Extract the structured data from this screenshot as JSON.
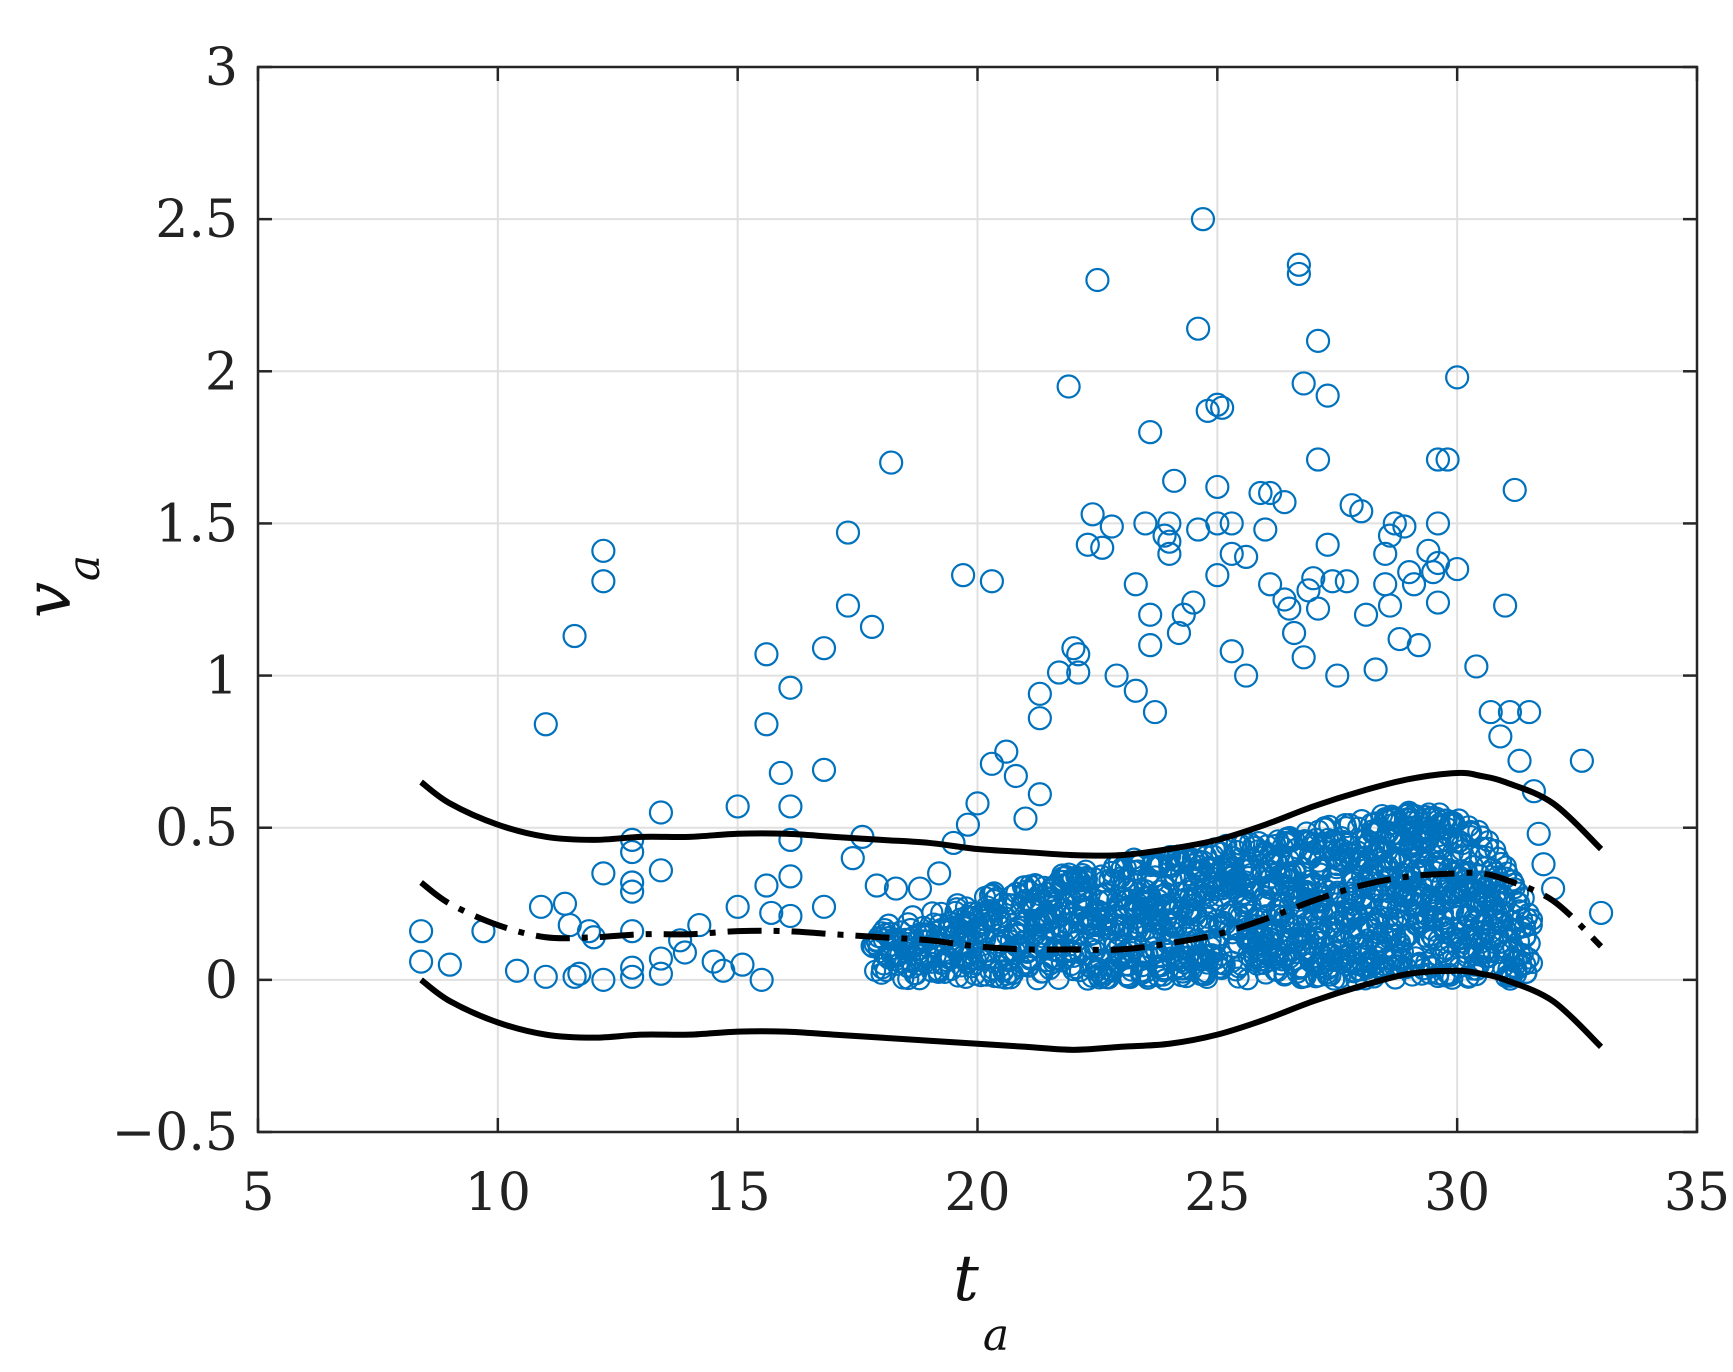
{
  "chart_data": {
    "type": "scatter",
    "title": "",
    "xlabel": "t",
    "xlabel_sub": "a",
    "ylabel": "v",
    "ylabel_sub": "a",
    "xlim": [
      5,
      35
    ],
    "ylim": [
      -0.5,
      3
    ],
    "xticks": [
      5,
      10,
      15,
      20,
      25,
      30,
      35
    ],
    "yticks": [
      -0.5,
      0,
      0.5,
      1,
      1.5,
      2,
      2.5,
      3
    ],
    "xtick_labels": [
      "5",
      "10",
      "15",
      "20",
      "25",
      "30",
      "35"
    ],
    "ytick_labels": [
      "−0.5",
      "0",
      "0.5",
      "1",
      "1.5",
      "2",
      "2.5",
      "3"
    ],
    "grid": true,
    "colors": {
      "points": "#0072BD",
      "lines": "#000000",
      "grid": "#e0e0e0",
      "axes": "#262626"
    },
    "series": [
      {
        "name": "observations",
        "kind": "scatter",
        "marker": "open-circle",
        "points": [
          [
            8.4,
            0.16
          ],
          [
            8.4,
            0.06
          ],
          [
            9.0,
            0.05
          ],
          [
            9.7,
            0.16
          ],
          [
            10.4,
            0.03
          ],
          [
            10.9,
            0.24
          ],
          [
            11.0,
            0.84
          ],
          [
            11.0,
            0.01
          ],
          [
            11.4,
            0.25
          ],
          [
            11.5,
            0.18
          ],
          [
            11.6,
            0.01
          ],
          [
            11.6,
            1.13
          ],
          [
            11.7,
            0.02
          ],
          [
            11.9,
            0.16
          ],
          [
            12.0,
            0.14
          ],
          [
            12.2,
            1.41
          ],
          [
            12.2,
            1.31
          ],
          [
            12.2,
            0.35
          ],
          [
            12.2,
            0.0
          ],
          [
            12.8,
            0.46
          ],
          [
            12.8,
            0.42
          ],
          [
            12.8,
            0.32
          ],
          [
            12.8,
            0.29
          ],
          [
            12.8,
            0.16
          ],
          [
            12.8,
            0.04
          ],
          [
            12.8,
            0.01
          ],
          [
            13.4,
            0.55
          ],
          [
            13.4,
            0.36
          ],
          [
            13.4,
            0.07
          ],
          [
            13.4,
            0.02
          ],
          [
            13.8,
            0.13
          ],
          [
            13.9,
            0.09
          ],
          [
            14.2,
            0.18
          ],
          [
            14.5,
            0.06
          ],
          [
            14.7,
            0.03
          ],
          [
            15.0,
            0.57
          ],
          [
            15.0,
            0.24
          ],
          [
            15.1,
            0.05
          ],
          [
            15.5,
            0.0
          ],
          [
            15.6,
            1.07
          ],
          [
            15.6,
            0.84
          ],
          [
            15.6,
            0.31
          ],
          [
            15.7,
            0.22
          ],
          [
            15.9,
            0.68
          ],
          [
            16.1,
            0.96
          ],
          [
            16.1,
            0.57
          ],
          [
            16.1,
            0.46
          ],
          [
            16.1,
            0.34
          ],
          [
            16.1,
            0.21
          ],
          [
            16.8,
            1.09
          ],
          [
            16.8,
            0.69
          ],
          [
            16.8,
            0.24
          ],
          [
            17.3,
            1.47
          ],
          [
            17.3,
            1.23
          ],
          [
            17.4,
            0.4
          ],
          [
            17.6,
            0.47
          ],
          [
            17.8,
            1.16
          ],
          [
            17.9,
            0.31
          ],
          [
            18.2,
            1.7
          ],
          [
            18.3,
            0.3
          ],
          [
            18.8,
            0.3
          ],
          [
            19.2,
            0.35
          ],
          [
            19.5,
            0.45
          ],
          [
            19.7,
            1.33
          ],
          [
            19.8,
            0.51
          ],
          [
            20.0,
            0.58
          ],
          [
            20.3,
            1.31
          ],
          [
            20.3,
            0.71
          ],
          [
            20.6,
            0.75
          ],
          [
            20.8,
            0.67
          ],
          [
            21.0,
            0.53
          ],
          [
            21.3,
            0.94
          ],
          [
            21.3,
            0.86
          ],
          [
            21.3,
            0.61
          ],
          [
            21.7,
            1.01
          ],
          [
            21.9,
            1.95
          ],
          [
            22.0,
            1.09
          ],
          [
            22.1,
            1.07
          ],
          [
            22.1,
            1.01
          ],
          [
            22.3,
            1.43
          ],
          [
            22.4,
            1.53
          ],
          [
            22.5,
            2.3
          ],
          [
            22.6,
            1.42
          ],
          [
            22.8,
            1.49
          ],
          [
            22.9,
            1.0
          ],
          [
            23.3,
            1.3
          ],
          [
            23.3,
            0.95
          ],
          [
            23.5,
            1.5
          ],
          [
            23.6,
            1.8
          ],
          [
            23.6,
            1.2
          ],
          [
            23.6,
            1.1
          ],
          [
            23.7,
            0.88
          ],
          [
            23.9,
            1.46
          ],
          [
            24.0,
            1.5
          ],
          [
            24.0,
            1.44
          ],
          [
            24.0,
            1.4
          ],
          [
            24.1,
            1.64
          ],
          [
            24.2,
            1.14
          ],
          [
            24.3,
            1.2
          ],
          [
            24.5,
            1.24
          ],
          [
            24.6,
            2.14
          ],
          [
            24.6,
            1.48
          ],
          [
            24.7,
            2.5
          ],
          [
            24.8,
            1.87
          ],
          [
            25.0,
            1.89
          ],
          [
            25.0,
            1.62
          ],
          [
            25.0,
            1.5
          ],
          [
            25.0,
            1.33
          ],
          [
            25.1,
            1.88
          ],
          [
            25.3,
            1.5
          ],
          [
            25.3,
            1.4
          ],
          [
            25.3,
            1.08
          ],
          [
            25.6,
            1.39
          ],
          [
            25.6,
            1.0
          ],
          [
            25.9,
            1.6
          ],
          [
            26.0,
            1.48
          ],
          [
            26.1,
            1.6
          ],
          [
            26.1,
            1.3
          ],
          [
            26.4,
            1.57
          ],
          [
            26.4,
            1.25
          ],
          [
            26.5,
            1.22
          ],
          [
            26.6,
            1.14
          ],
          [
            26.7,
            2.35
          ],
          [
            26.7,
            2.32
          ],
          [
            26.8,
            1.96
          ],
          [
            26.8,
            1.06
          ],
          [
            26.9,
            1.28
          ],
          [
            27.0,
            1.32
          ],
          [
            27.1,
            2.1
          ],
          [
            27.1,
            1.71
          ],
          [
            27.1,
            1.22
          ],
          [
            27.3,
            1.92
          ],
          [
            27.3,
            1.43
          ],
          [
            27.4,
            1.31
          ],
          [
            27.5,
            1.0
          ],
          [
            27.7,
            1.31
          ],
          [
            27.8,
            1.56
          ],
          [
            28.0,
            1.54
          ],
          [
            28.1,
            1.2
          ],
          [
            28.3,
            1.02
          ],
          [
            28.5,
            1.4
          ],
          [
            28.5,
            1.3
          ],
          [
            28.6,
            1.46
          ],
          [
            28.6,
            1.23
          ],
          [
            28.7,
            1.5
          ],
          [
            28.8,
            1.12
          ],
          [
            28.9,
            1.49
          ],
          [
            29.0,
            1.34
          ],
          [
            29.1,
            1.3
          ],
          [
            29.2,
            1.1
          ],
          [
            29.4,
            1.41
          ],
          [
            29.5,
            1.34
          ],
          [
            29.6,
            1.71
          ],
          [
            29.6,
            1.5
          ],
          [
            29.6,
            1.37
          ],
          [
            29.6,
            1.24
          ],
          [
            29.8,
            1.71
          ],
          [
            30.0,
            1.35
          ],
          [
            30.0,
            1.98
          ],
          [
            30.4,
            1.03
          ],
          [
            30.7,
            0.88
          ],
          [
            30.9,
            0.8
          ],
          [
            31.0,
            1.23
          ],
          [
            31.1,
            0.88
          ],
          [
            31.2,
            1.61
          ],
          [
            31.3,
            0.72
          ],
          [
            31.5,
            0.88
          ],
          [
            31.6,
            0.62
          ],
          [
            31.7,
            0.48
          ],
          [
            31.8,
            0.38
          ],
          [
            32.0,
            0.3
          ],
          [
            32.6,
            0.72
          ],
          [
            33.0,
            0.22
          ]
        ]
      },
      {
        "name": "dense-cloud",
        "kind": "scatter-band",
        "x_start": 17.8,
        "x_end": 31.6,
        "x_step": 0.05,
        "y_low": 0,
        "upper_envelope": [
          [
            17.8,
            0.17
          ],
          [
            19.5,
            0.25
          ],
          [
            21.0,
            0.32
          ],
          [
            22.5,
            0.38
          ],
          [
            24.0,
            0.42
          ],
          [
            25.5,
            0.45
          ],
          [
            27.0,
            0.5
          ],
          [
            28.5,
            0.55
          ],
          [
            29.5,
            0.56
          ],
          [
            30.5,
            0.5
          ],
          [
            31.2,
            0.35
          ],
          [
            31.6,
            0.2
          ]
        ]
      },
      {
        "name": "upper-bound",
        "kind": "line",
        "style": "solid",
        "x": [
          8.4,
          9.0,
          10.0,
          11.0,
          12.0,
          13.0,
          14.0,
          15.0,
          16.0,
          17.0,
          18.0,
          19.0,
          20.0,
          21.0,
          22.0,
          23.0,
          24.0,
          25.0,
          26.0,
          27.0,
          28.0,
          29.0,
          30.0,
          30.5,
          31.0,
          32.0,
          33.0
        ],
        "y": [
          0.65,
          0.58,
          0.51,
          0.47,
          0.46,
          0.47,
          0.47,
          0.48,
          0.48,
          0.47,
          0.46,
          0.45,
          0.43,
          0.42,
          0.41,
          0.41,
          0.43,
          0.46,
          0.51,
          0.57,
          0.62,
          0.66,
          0.68,
          0.67,
          0.65,
          0.58,
          0.43
        ]
      },
      {
        "name": "mean",
        "kind": "line",
        "style": "dashdot",
        "x": [
          8.4,
          9.0,
          10.0,
          11.0,
          12.0,
          13.0,
          14.0,
          15.0,
          16.0,
          17.0,
          18.0,
          19.0,
          20.0,
          21.0,
          22.0,
          23.0,
          24.0,
          25.0,
          26.0,
          27.0,
          28.0,
          29.0,
          30.0,
          30.5,
          31.0,
          32.0,
          33.0
        ],
        "y": [
          0.32,
          0.25,
          0.18,
          0.14,
          0.14,
          0.15,
          0.15,
          0.16,
          0.16,
          0.15,
          0.14,
          0.13,
          0.11,
          0.1,
          0.1,
          0.1,
          0.12,
          0.15,
          0.2,
          0.26,
          0.31,
          0.34,
          0.35,
          0.35,
          0.33,
          0.26,
          0.11
        ]
      },
      {
        "name": "lower-bound",
        "kind": "line",
        "style": "solid",
        "x": [
          8.4,
          9.0,
          10.0,
          11.0,
          12.0,
          13.0,
          14.0,
          15.0,
          16.0,
          17.0,
          18.0,
          19.0,
          20.0,
          21.0,
          22.0,
          23.0,
          24.0,
          25.0,
          26.0,
          27.0,
          28.0,
          29.0,
          30.0,
          30.5,
          31.0,
          32.0,
          33.0
        ],
        "y": [
          0.0,
          -0.07,
          -0.14,
          -0.18,
          -0.19,
          -0.18,
          -0.18,
          -0.17,
          -0.17,
          -0.18,
          -0.19,
          -0.2,
          -0.21,
          -0.22,
          -0.23,
          -0.22,
          -0.21,
          -0.18,
          -0.13,
          -0.07,
          -0.02,
          0.02,
          0.03,
          0.02,
          0.0,
          -0.07,
          -0.22
        ]
      }
    ]
  }
}
